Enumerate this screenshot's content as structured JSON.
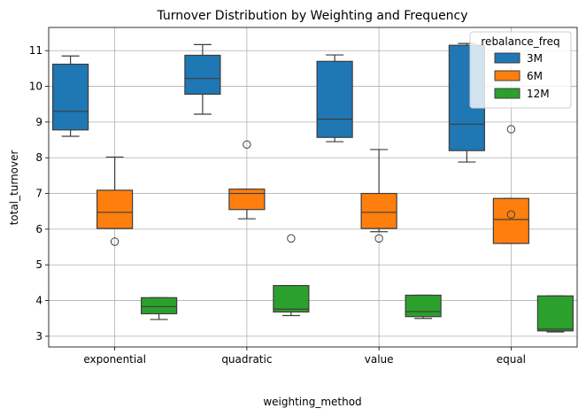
{
  "chart_data": {
    "type": "box",
    "title": "Turnover Distribution by Weighting and Frequency",
    "xlabel": "weighting_method",
    "ylabel": "total_turnover",
    "categories": [
      "exponential",
      "quadratic",
      "value",
      "equal"
    ],
    "ylim": [
      2.7,
      11.65
    ],
    "yticks": [
      3,
      4,
      5,
      6,
      7,
      8,
      9,
      10,
      11
    ],
    "grid": true,
    "legend": {
      "title": "rebalance_freq",
      "placement": "top-right"
    },
    "series": [
      {
        "name": "3M",
        "color": "#1f77b4",
        "boxes": [
          {
            "whislo": 8.6,
            "q1": 8.78,
            "med": 9.3,
            "q3": 10.62,
            "whishi": 10.85,
            "fliers": []
          },
          {
            "whislo": 9.22,
            "q1": 9.78,
            "med": 10.22,
            "q3": 10.87,
            "whishi": 11.17,
            "fliers": []
          },
          {
            "whislo": 8.45,
            "q1": 8.57,
            "med": 9.08,
            "q3": 10.7,
            "whishi": 10.88,
            "fliers": []
          },
          {
            "whislo": 7.88,
            "q1": 8.2,
            "med": 8.94,
            "q3": 11.15,
            "whishi": 11.2,
            "fliers": []
          }
        ]
      },
      {
        "name": "6M",
        "color": "#ff7f0e",
        "boxes": [
          {
            "whislo": 6.02,
            "q1": 6.02,
            "med": 6.47,
            "q3": 7.09,
            "whishi": 8.02,
            "fliers": [
              5.65
            ]
          },
          {
            "whislo": 6.29,
            "q1": 6.55,
            "med": 7.0,
            "q3": 7.12,
            "whishi": 7.12,
            "fliers": [
              8.37
            ]
          },
          {
            "whislo": 5.93,
            "q1": 6.02,
            "med": 6.47,
            "q3": 7.0,
            "whishi": 8.23,
            "fliers": [
              5.74
            ]
          },
          {
            "whislo": 5.6,
            "q1": 5.6,
            "med": 6.27,
            "q3": 6.86,
            "whishi": 6.86,
            "fliers": [
              8.8,
              6.41
            ]
          }
        ]
      },
      {
        "name": "12M",
        "color": "#2ca02c",
        "boxes": [
          {
            "whislo": 3.47,
            "q1": 3.63,
            "med": 3.83,
            "q3": 4.08,
            "whishi": 4.08,
            "fliers": []
          },
          {
            "whislo": 3.58,
            "q1": 3.68,
            "med": 3.76,
            "q3": 4.42,
            "whishi": 4.42,
            "fliers": [
              5.74
            ]
          },
          {
            "whislo": 3.5,
            "q1": 3.55,
            "med": 3.69,
            "q3": 4.15,
            "whishi": 4.15,
            "fliers": []
          },
          {
            "whislo": 3.12,
            "q1": 3.15,
            "med": 3.2,
            "q3": 4.13,
            "whishi": 4.13,
            "fliers": []
          }
        ]
      }
    ]
  }
}
